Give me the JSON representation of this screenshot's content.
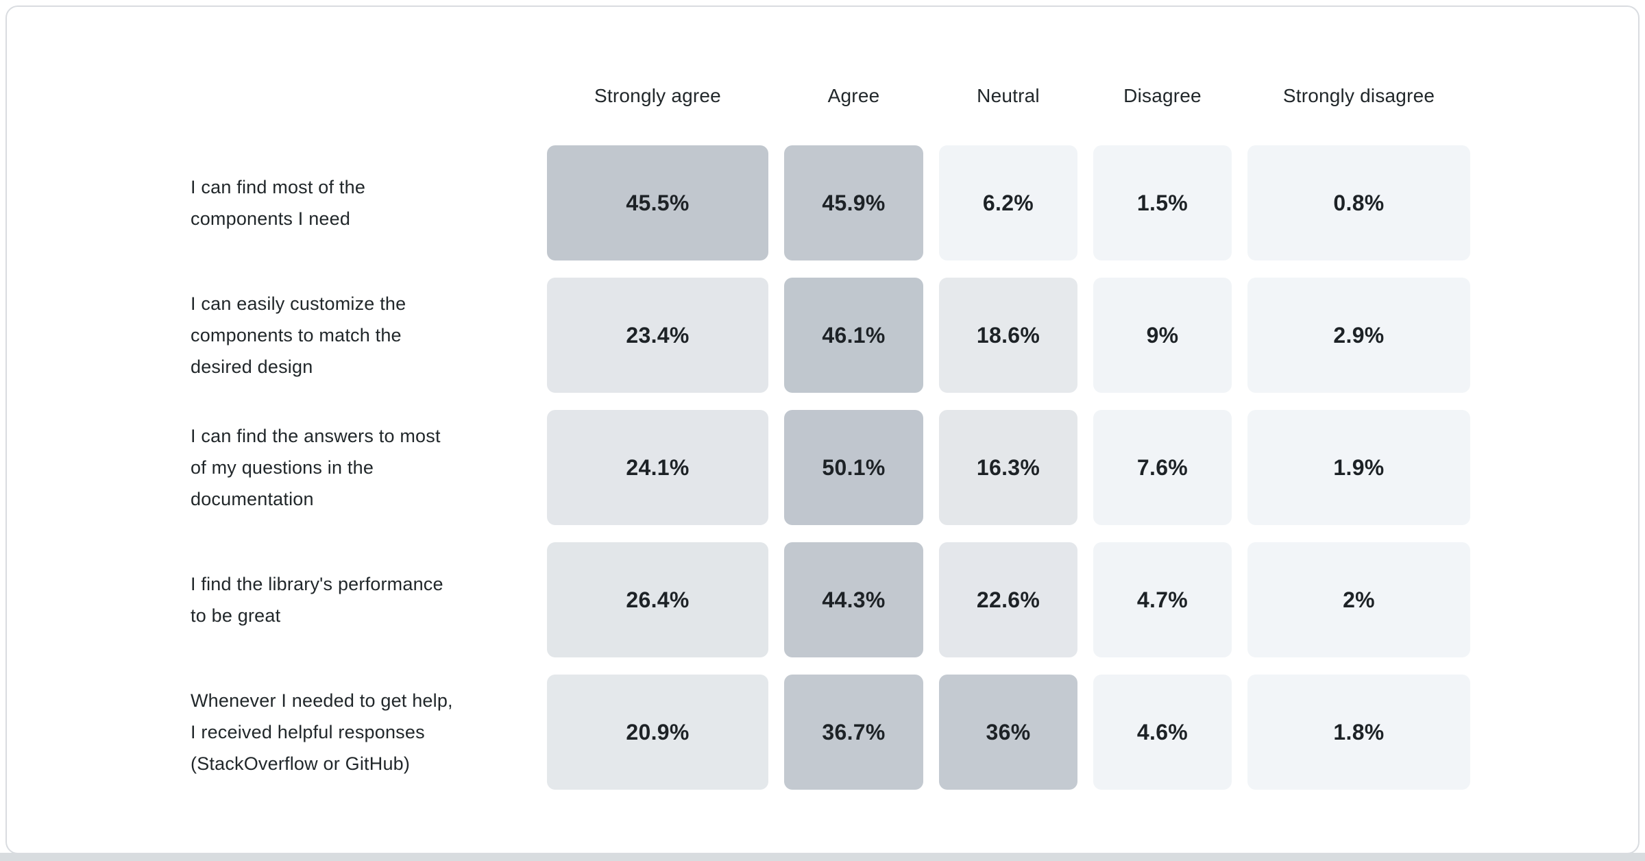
{
  "page": {
    "background": "#ffffff",
    "card_border_color": "#d9dce0",
    "bottom_strip_color": "#d8dcdf",
    "heading_text_color": "#21272a",
    "value_text_color": "#1d2226"
  },
  "chart_data": {
    "type": "heatmap",
    "columns": [
      "Strongly agree",
      "Agree",
      "Neutral",
      "Disagree",
      "Strongly disagree"
    ],
    "color_scale": {
      "low": "#f2f5f8",
      "high": "#c0c6ce",
      "domain": [
        0,
        50.1
      ]
    },
    "rows": [
      {
        "label": "I can find most of the\ncomponents I need",
        "display_values": [
          "45.5%",
          "45.9%",
          "6.2%",
          "1.5%",
          "0.8%"
        ],
        "values": [
          45.5,
          45.9,
          6.2,
          1.5,
          0.8
        ],
        "cell_colors": [
          "#c1c7ce",
          "#c2c8cf",
          "#f1f4f7",
          "#f2f5f8",
          "#f2f5f8"
        ]
      },
      {
        "label": "I can easily customize the\ncomponents to match the\ndesired design",
        "display_values": [
          "23.4%",
          "46.1%",
          "18.6%",
          "9%",
          "2.9%"
        ],
        "values": [
          23.4,
          46.1,
          18.6,
          9,
          2.9
        ],
        "cell_colors": [
          "#e3e6ea",
          "#c0c7ce",
          "#e6e9ec",
          "#f1f4f7",
          "#f2f5f8"
        ]
      },
      {
        "label": "I can find the answers to most\nof my questions in the\ndocumentation",
        "display_values": [
          "24.1%",
          "50.1%",
          "16.3%",
          "7.6%",
          "1.9%"
        ],
        "values": [
          24.1,
          50.1,
          16.3,
          7.6,
          1.9
        ],
        "cell_colors": [
          "#e3e6ea",
          "#c0c6ce",
          "#e4e7ea",
          "#f1f4f7",
          "#f2f5f8"
        ]
      },
      {
        "label": "I find the library's performance\nto be great",
        "display_values": [
          "26.4%",
          "44.3%",
          "22.6%",
          "4.7%",
          "2%"
        ],
        "values": [
          26.4,
          44.3,
          22.6,
          4.7,
          2
        ],
        "cell_colors": [
          "#e2e6e9",
          "#c2c8cf",
          "#e4e7eb",
          "#f1f4f7",
          "#f2f5f8"
        ]
      },
      {
        "label": "Whenever I needed to get help,\nI received helpful responses\n(StackOverflow or GitHub)",
        "display_values": [
          "20.9%",
          "36.7%",
          "36%",
          "4.6%",
          "1.8%"
        ],
        "values": [
          20.9,
          36.7,
          36,
          4.6,
          1.8
        ],
        "cell_colors": [
          "#e4e8eb",
          "#c3c9d0",
          "#c4cad1",
          "#f1f4f7",
          "#f2f5f8"
        ]
      }
    ]
  }
}
